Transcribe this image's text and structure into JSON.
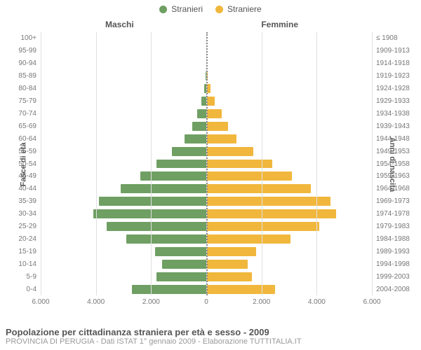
{
  "chart": {
    "type": "population-pyramid",
    "legend": [
      {
        "label": "Stranieri",
        "color": "#6f9f63"
      },
      {
        "label": "Straniere",
        "color": "#f1b73c"
      }
    ],
    "columns": {
      "left": "Maschi",
      "right": "Femmine"
    },
    "yaxis_left_title": "Fasce di età",
    "yaxis_right_title": "Anni di nascita",
    "xaxis": {
      "max": 6000,
      "ticks": [
        -6000,
        -4000,
        -2000,
        0,
        2000,
        4000,
        6000
      ],
      "tick_labels": [
        "6.000",
        "4.000",
        "2.000",
        "0",
        "2.000",
        "4.000",
        "6.000"
      ]
    },
    "grid_color": "#e0e0e0",
    "center_line_color": "#888888",
    "bar_colors": {
      "male": "#6f9f63",
      "female": "#f1b73c"
    },
    "background_color": "#ffffff",
    "label_color": "#777777",
    "header_color": "#555555",
    "tick_fontsize": 10,
    "label_fontsize": 10,
    "legend_fontsize": 12,
    "rows": [
      {
        "age": "100+",
        "birth": "≤ 1908",
        "m": 0,
        "f": 0
      },
      {
        "age": "95-99",
        "birth": "1909-1913",
        "m": 0,
        "f": 10
      },
      {
        "age": "90-94",
        "birth": "1914-1918",
        "m": 10,
        "f": 20
      },
      {
        "age": "85-89",
        "birth": "1919-1923",
        "m": 30,
        "f": 60
      },
      {
        "age": "80-84",
        "birth": "1924-1928",
        "m": 80,
        "f": 160
      },
      {
        "age": "75-79",
        "birth": "1929-1933",
        "m": 170,
        "f": 300
      },
      {
        "age": "70-74",
        "birth": "1934-1938",
        "m": 340,
        "f": 560
      },
      {
        "age": "65-69",
        "birth": "1939-1943",
        "m": 520,
        "f": 780
      },
      {
        "age": "60-64",
        "birth": "1944-1948",
        "m": 780,
        "f": 1100
      },
      {
        "age": "55-59",
        "birth": "1949-1953",
        "m": 1250,
        "f": 1700
      },
      {
        "age": "50-54",
        "birth": "1954-1958",
        "m": 1800,
        "f": 2400
      },
      {
        "age": "45-49",
        "birth": "1959-1963",
        "m": 2400,
        "f": 3100
      },
      {
        "age": "40-44",
        "birth": "1964-1968",
        "m": 3100,
        "f": 3800
      },
      {
        "age": "35-39",
        "birth": "1969-1973",
        "m": 3900,
        "f": 4500
      },
      {
        "age": "30-34",
        "birth": "1974-1978",
        "m": 4100,
        "f": 4700
      },
      {
        "age": "25-29",
        "birth": "1979-1983",
        "m": 3600,
        "f": 4100
      },
      {
        "age": "20-24",
        "birth": "1984-1988",
        "m": 2900,
        "f": 3050
      },
      {
        "age": "15-19",
        "birth": "1989-1993",
        "m": 1850,
        "f": 1800
      },
      {
        "age": "10-14",
        "birth": "1994-1998",
        "m": 1600,
        "f": 1500
      },
      {
        "age": "5-9",
        "birth": "1999-2003",
        "m": 1800,
        "f": 1650
      },
      {
        "age": "0-4",
        "birth": "2004-2008",
        "m": 2700,
        "f": 2500
      }
    ]
  },
  "footer": {
    "title": "Popolazione per cittadinanza straniera per età e sesso - 2009",
    "subtitle": "PROVINCIA DI PERUGIA - Dati ISTAT 1° gennaio 2009 - Elaborazione TUTTITALIA.IT"
  }
}
